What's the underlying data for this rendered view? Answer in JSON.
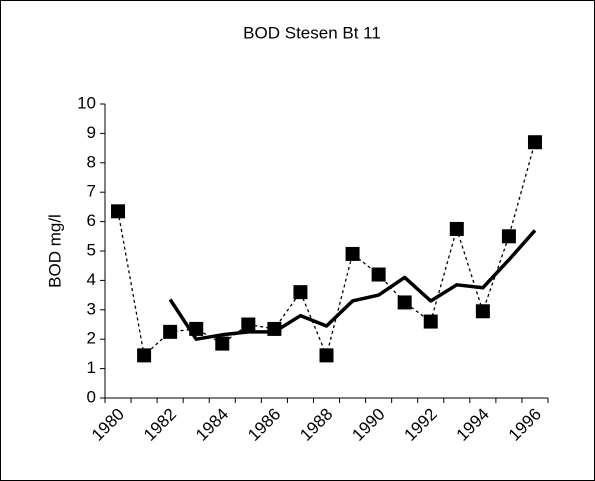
{
  "chart_data": {
    "type": "line",
    "title": "BOD Stesen Bt 11",
    "y_label": "BOD mg/l",
    "categories": [
      "1980",
      null,
      "1982",
      null,
      "1984",
      null,
      "1986",
      null,
      "1988",
      null,
      "1990",
      null,
      "1992",
      null,
      "1994",
      null,
      "1996"
    ],
    "series": [
      {
        "color": "#000000",
        "line": "dashed",
        "marker": "square",
        "values": [
          6.35,
          1.45,
          2.25,
          2.35,
          1.85,
          2.5,
          2.35,
          3.6,
          1.45,
          4.9,
          4.2,
          3.25,
          2.6,
          5.75,
          2.95,
          5.5,
          8.7
        ]
      },
      {
        "color": "#000000",
        "line": "solid",
        "marker": "none",
        "values": [
          null,
          null,
          3.35,
          2.0,
          2.15,
          2.25,
          2.25,
          2.8,
          2.45,
          3.3,
          3.5,
          4.1,
          3.3,
          3.85,
          3.75,
          4.7,
          5.7
        ]
      }
    ],
    "ylim": [
      0,
      10
    ],
    "yticks": [
      0,
      1,
      2,
      3,
      4,
      5,
      6,
      7,
      8,
      9,
      10
    ],
    "grid": false
  }
}
